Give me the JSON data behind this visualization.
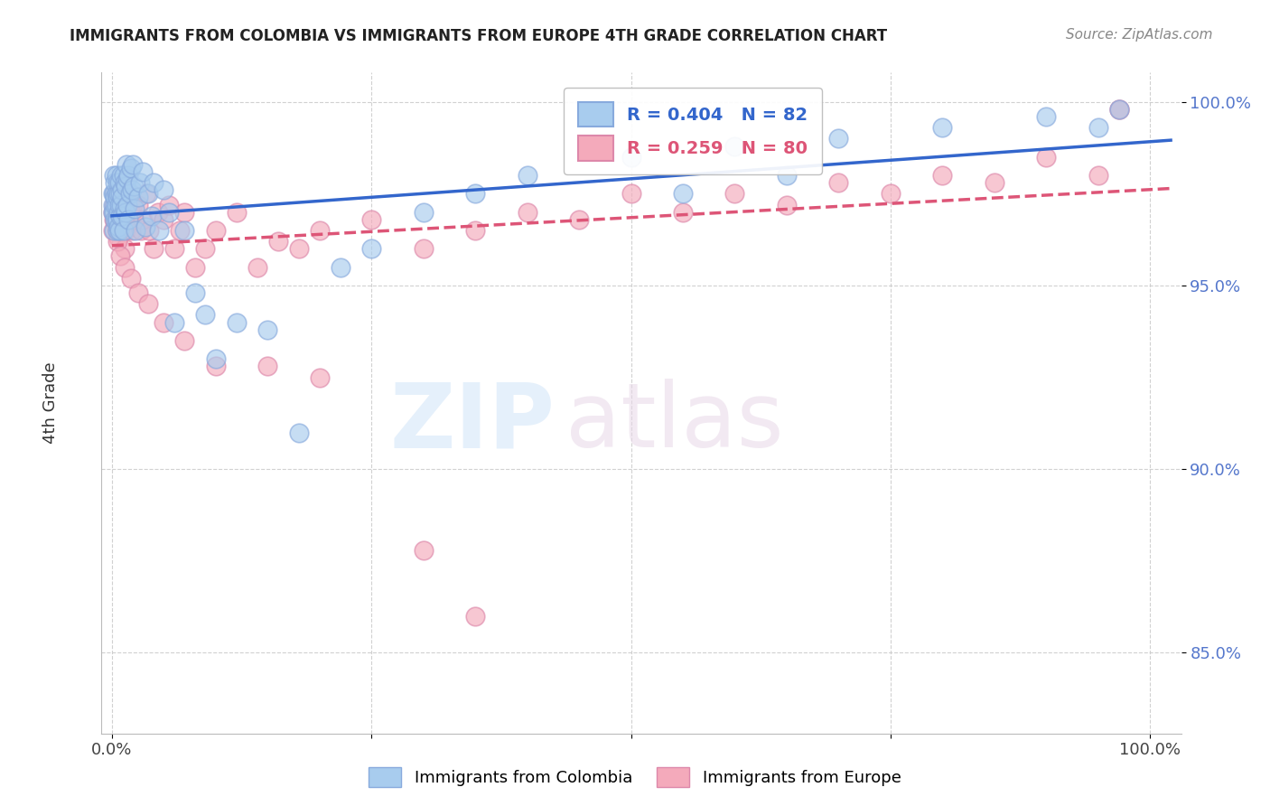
{
  "title": "IMMIGRANTS FROM COLOMBIA VS IMMIGRANTS FROM EUROPE 4TH GRADE CORRELATION CHART",
  "source": "Source: ZipAtlas.com",
  "ylabel": "4th Grade",
  "xlim": [
    0.0,
    1.0
  ],
  "ylim": [
    0.828,
    1.008
  ],
  "yticks": [
    0.85,
    0.9,
    0.95,
    1.0
  ],
  "ytick_labels": [
    "85.0%",
    "90.0%",
    "95.0%",
    "100.0%"
  ],
  "colombia_color": "#A8CCEE",
  "europe_color": "#F4AABB",
  "colombia_edge": "#88AADD",
  "europe_edge": "#DD88AA",
  "line_colombia_color": "#3366CC",
  "line_europe_color": "#DD5577",
  "legend_R_colombia": "R = 0.404",
  "legend_N_colombia": "N = 82",
  "legend_R_europe": "R = 0.259",
  "legend_N_europe": "N = 80",
  "colombia_color_legend": "#88AADD",
  "europe_color_legend": "#F4AABB",
  "colombia_x": [
    0.001,
    0.001,
    0.001,
    0.002,
    0.002,
    0.002,
    0.002,
    0.003,
    0.003,
    0.003,
    0.003,
    0.004,
    0.004,
    0.004,
    0.004,
    0.005,
    0.005,
    0.005,
    0.005,
    0.006,
    0.006,
    0.006,
    0.007,
    0.007,
    0.007,
    0.008,
    0.008,
    0.009,
    0.009,
    0.01,
    0.01,
    0.01,
    0.011,
    0.011,
    0.012,
    0.012,
    0.013,
    0.013,
    0.014,
    0.015,
    0.015,
    0.016,
    0.016,
    0.017,
    0.018,
    0.019,
    0.02,
    0.021,
    0.022,
    0.023,
    0.025,
    0.027,
    0.03,
    0.032,
    0.035,
    0.038,
    0.04,
    0.045,
    0.05,
    0.055,
    0.06,
    0.07,
    0.08,
    0.09,
    0.1,
    0.12,
    0.15,
    0.18,
    0.22,
    0.25,
    0.3,
    0.35,
    0.4,
    0.5,
    0.6,
    0.7,
    0.8,
    0.9,
    0.95,
    0.97,
    0.55,
    0.65
  ],
  "colombia_y": [
    0.972,
    0.975,
    0.97,
    0.975,
    0.98,
    0.97,
    0.965,
    0.972,
    0.978,
    0.968,
    0.974,
    0.975,
    0.98,
    0.968,
    0.972,
    0.978,
    0.968,
    0.974,
    0.965,
    0.975,
    0.97,
    0.966,
    0.978,
    0.972,
    0.965,
    0.975,
    0.969,
    0.98,
    0.972,
    0.976,
    0.969,
    0.974,
    0.98,
    0.965,
    0.978,
    0.971,
    0.977,
    0.97,
    0.983,
    0.979,
    0.972,
    0.98,
    0.968,
    0.975,
    0.982,
    0.976,
    0.983,
    0.977,
    0.971,
    0.965,
    0.974,
    0.978,
    0.981,
    0.966,
    0.975,
    0.969,
    0.978,
    0.965,
    0.976,
    0.97,
    0.94,
    0.965,
    0.948,
    0.942,
    0.93,
    0.94,
    0.938,
    0.91,
    0.955,
    0.96,
    0.97,
    0.975,
    0.98,
    0.985,
    0.988,
    0.99,
    0.993,
    0.996,
    0.993,
    0.998,
    0.975,
    0.98
  ],
  "europe_x": [
    0.001,
    0.001,
    0.002,
    0.002,
    0.003,
    0.003,
    0.004,
    0.004,
    0.005,
    0.005,
    0.006,
    0.006,
    0.007,
    0.007,
    0.008,
    0.009,
    0.01,
    0.01,
    0.011,
    0.012,
    0.012,
    0.013,
    0.014,
    0.015,
    0.016,
    0.017,
    0.018,
    0.019,
    0.02,
    0.022,
    0.025,
    0.028,
    0.03,
    0.033,
    0.036,
    0.04,
    0.044,
    0.05,
    0.055,
    0.06,
    0.065,
    0.07,
    0.08,
    0.09,
    0.1,
    0.12,
    0.14,
    0.16,
    0.18,
    0.2,
    0.25,
    0.3,
    0.35,
    0.4,
    0.45,
    0.5,
    0.55,
    0.6,
    0.65,
    0.7,
    0.75,
    0.8,
    0.85,
    0.9,
    0.95,
    0.97,
    0.005,
    0.008,
    0.012,
    0.018,
    0.025,
    0.035,
    0.05,
    0.07,
    0.1,
    0.15,
    0.2,
    0.3,
    0.35,
    0.97
  ],
  "europe_y": [
    0.97,
    0.965,
    0.972,
    0.968,
    0.975,
    0.968,
    0.972,
    0.965,
    0.975,
    0.97,
    0.968,
    0.963,
    0.972,
    0.965,
    0.97,
    0.975,
    0.972,
    0.965,
    0.968,
    0.972,
    0.96,
    0.965,
    0.97,
    0.972,
    0.968,
    0.975,
    0.97,
    0.965,
    0.972,
    0.968,
    0.972,
    0.965,
    0.968,
    0.975,
    0.965,
    0.96,
    0.97,
    0.968,
    0.972,
    0.96,
    0.965,
    0.97,
    0.955,
    0.96,
    0.965,
    0.97,
    0.955,
    0.962,
    0.96,
    0.965,
    0.968,
    0.96,
    0.965,
    0.97,
    0.968,
    0.975,
    0.97,
    0.975,
    0.972,
    0.978,
    0.975,
    0.98,
    0.978,
    0.985,
    0.98,
    0.998,
    0.962,
    0.958,
    0.955,
    0.952,
    0.948,
    0.945,
    0.94,
    0.935,
    0.928,
    0.928,
    0.925,
    0.878,
    0.86,
    0.998
  ]
}
